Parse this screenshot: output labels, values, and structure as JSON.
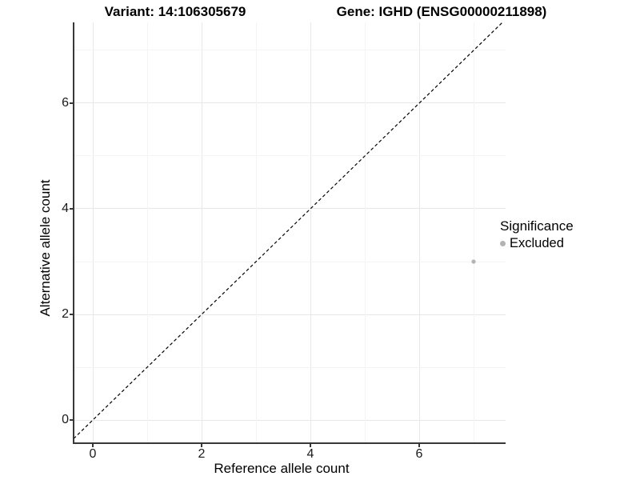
{
  "titles": {
    "left": "Variant: 14:106305679",
    "right": "Gene: IGHD (ENSG00000211898)"
  },
  "legend": {
    "title": "Significance",
    "items": [
      {
        "label": "Excluded",
        "color": "#b3b3b3"
      }
    ]
  },
  "chart_data": {
    "type": "scatter",
    "title_left": "Variant: 14:106305679",
    "title_right": "Gene: IGHD (ENSG00000211898)",
    "xlabel": "Reference allele count",
    "ylabel": "Alternative allele count",
    "xlim": [
      -0.353,
      7.588
    ],
    "ylim": [
      -0.424,
      7.53
    ],
    "x_major_ticks": [
      0,
      2,
      4,
      6
    ],
    "y_major_ticks": [
      0,
      2,
      4,
      6
    ],
    "x_minor_ticks": [
      1,
      3,
      5,
      7
    ],
    "y_minor_ticks": [
      1,
      3,
      5,
      7
    ],
    "grid": "major-and-minor",
    "legend_position": "right",
    "identity_line": {
      "slope": 1,
      "intercept": 0,
      "style": "dashed",
      "color": "#000000"
    },
    "series": [
      {
        "name": "Excluded",
        "color": "#b3b3b3",
        "marker_radius": 2.6,
        "points": [
          {
            "x": 7,
            "y": 3
          }
        ]
      }
    ]
  }
}
